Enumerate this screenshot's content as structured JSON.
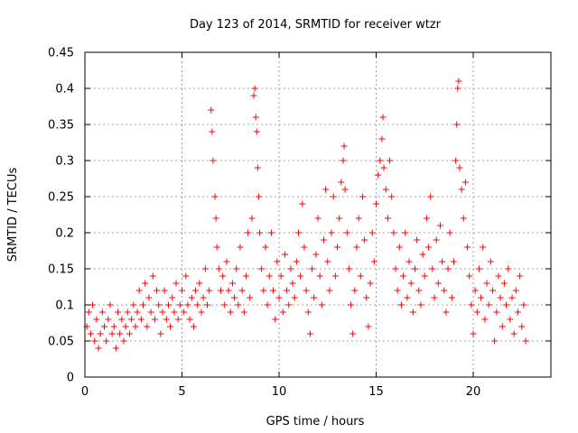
{
  "chart_data": {
    "type": "scatter",
    "title": "Day 123 of 2014, SRMTID for receiver wtzr",
    "xlabel": "GPS time / hours",
    "ylabel": "SRMTID / TECUs",
    "xlim": [
      0,
      24
    ],
    "ylim": [
      0,
      0.45
    ],
    "xticks": [
      0,
      5,
      10,
      15,
      20
    ],
    "xtick_labels": [
      "0",
      "5",
      "10",
      "15",
      "20"
    ],
    "yticks": [
      0,
      0.05,
      0.1,
      0.15,
      0.2,
      0.25,
      0.3,
      0.35,
      0.4,
      0.45
    ],
    "ytick_labels": [
      "0",
      "0.05",
      "0.1",
      "0.15",
      "0.2",
      "0.25",
      "0.3",
      "0.35",
      "0.4",
      "0.45"
    ],
    "grid": true,
    "marker": "+",
    "colors": {
      "points": "#ff0000",
      "grid": "#a0a0a0",
      "axes": "#000000"
    },
    "series": [
      {
        "name": "SRMTID",
        "points": [
          [
            0.1,
            0.07
          ],
          [
            0.2,
            0.09
          ],
          [
            0.3,
            0.06
          ],
          [
            0.4,
            0.1
          ],
          [
            0.5,
            0.05
          ],
          [
            0.6,
            0.08
          ],
          [
            0.7,
            0.04
          ],
          [
            0.8,
            0.06
          ],
          [
            0.9,
            0.09
          ],
          [
            1.0,
            0.07
          ],
          [
            1.1,
            0.05
          ],
          [
            1.2,
            0.08
          ],
          [
            1.3,
            0.1
          ],
          [
            1.4,
            0.06
          ],
          [
            1.5,
            0.07
          ],
          [
            1.6,
            0.04
          ],
          [
            1.7,
            0.09
          ],
          [
            1.8,
            0.06
          ],
          [
            1.9,
            0.08
          ],
          [
            2.0,
            0.05
          ],
          [
            2.1,
            0.07
          ],
          [
            2.2,
            0.09
          ],
          [
            2.3,
            0.06
          ],
          [
            2.4,
            0.08
          ],
          [
            2.5,
            0.1
          ],
          [
            2.6,
            0.07
          ],
          [
            2.7,
            0.09
          ],
          [
            2.8,
            0.12
          ],
          [
            2.9,
            0.08
          ],
          [
            3.0,
            0.1
          ],
          [
            3.1,
            0.13
          ],
          [
            3.2,
            0.07
          ],
          [
            3.3,
            0.11
          ],
          [
            3.4,
            0.09
          ],
          [
            3.5,
            0.14
          ],
          [
            3.6,
            0.08
          ],
          [
            3.7,
            0.12
          ],
          [
            3.8,
            0.1
          ],
          [
            3.9,
            0.06
          ],
          [
            4.0,
            0.09
          ],
          [
            4.1,
            0.12
          ],
          [
            4.2,
            0.08
          ],
          [
            4.3,
            0.1
          ],
          [
            4.4,
            0.07
          ],
          [
            4.5,
            0.11
          ],
          [
            4.6,
            0.09
          ],
          [
            4.7,
            0.13
          ],
          [
            4.8,
            0.08
          ],
          [
            4.9,
            0.1
          ],
          [
            5.0,
            0.12
          ],
          [
            5.1,
            0.09
          ],
          [
            5.2,
            0.14
          ],
          [
            5.3,
            0.1
          ],
          [
            5.4,
            0.08
          ],
          [
            5.5,
            0.11
          ],
          [
            5.6,
            0.07
          ],
          [
            5.7,
            0.12
          ],
          [
            5.8,
            0.1
          ],
          [
            5.9,
            0.13
          ],
          [
            6.0,
            0.09
          ],
          [
            6.1,
            0.11
          ],
          [
            6.2,
            0.15
          ],
          [
            6.3,
            0.1
          ],
          [
            6.4,
            0.12
          ],
          [
            6.5,
            0.37
          ],
          [
            6.55,
            0.34
          ],
          [
            6.6,
            0.3
          ],
          [
            6.7,
            0.25
          ],
          [
            6.75,
            0.22
          ],
          [
            6.8,
            0.18
          ],
          [
            6.9,
            0.15
          ],
          [
            7.0,
            0.12
          ],
          [
            7.1,
            0.14
          ],
          [
            7.2,
            0.1
          ],
          [
            7.3,
            0.16
          ],
          [
            7.4,
            0.12
          ],
          [
            7.5,
            0.09
          ],
          [
            7.6,
            0.13
          ],
          [
            7.7,
            0.11
          ],
          [
            7.8,
            0.15
          ],
          [
            7.9,
            0.1
          ],
          [
            8.0,
            0.18
          ],
          [
            8.1,
            0.12
          ],
          [
            8.2,
            0.09
          ],
          [
            8.3,
            0.14
          ],
          [
            8.4,
            0.2
          ],
          [
            8.5,
            0.11
          ],
          [
            8.6,
            0.22
          ],
          [
            8.7,
            0.39
          ],
          [
            8.75,
            0.4
          ],
          [
            8.8,
            0.36
          ],
          [
            8.85,
            0.34
          ],
          [
            8.9,
            0.29
          ],
          [
            8.95,
            0.25
          ],
          [
            9.0,
            0.2
          ],
          [
            9.1,
            0.15
          ],
          [
            9.2,
            0.12
          ],
          [
            9.3,
            0.18
          ],
          [
            9.4,
            0.1
          ],
          [
            9.5,
            0.14
          ],
          [
            9.6,
            0.2
          ],
          [
            9.7,
            0.12
          ],
          [
            9.8,
            0.08
          ],
          [
            9.9,
            0.16
          ],
          [
            10.0,
            0.11
          ],
          [
            10.1,
            0.14
          ],
          [
            10.2,
            0.09
          ],
          [
            10.3,
            0.17
          ],
          [
            10.4,
            0.12
          ],
          [
            10.5,
            0.1
          ],
          [
            10.6,
            0.15
          ],
          [
            10.7,
            0.13
          ],
          [
            10.8,
            0.11
          ],
          [
            10.9,
            0.16
          ],
          [
            11.0,
            0.2
          ],
          [
            11.1,
            0.14
          ],
          [
            11.2,
            0.24
          ],
          [
            11.3,
            0.18
          ],
          [
            11.4,
            0.12
          ],
          [
            11.5,
            0.09
          ],
          [
            11.6,
            0.06
          ],
          [
            11.7,
            0.15
          ],
          [
            11.8,
            0.11
          ],
          [
            11.9,
            0.17
          ],
          [
            12.0,
            0.22
          ],
          [
            12.1,
            0.14
          ],
          [
            12.2,
            0.1
          ],
          [
            12.3,
            0.19
          ],
          [
            12.4,
            0.26
          ],
          [
            12.5,
            0.16
          ],
          [
            12.6,
            0.12
          ],
          [
            12.7,
            0.2
          ],
          [
            12.8,
            0.25
          ],
          [
            12.9,
            0.14
          ],
          [
            13.0,
            0.18
          ],
          [
            13.1,
            0.22
          ],
          [
            13.2,
            0.27
          ],
          [
            13.3,
            0.3
          ],
          [
            13.35,
            0.32
          ],
          [
            13.4,
            0.26
          ],
          [
            13.5,
            0.2
          ],
          [
            13.6,
            0.15
          ],
          [
            13.7,
            0.1
          ],
          [
            13.8,
            0.06
          ],
          [
            13.9,
            0.12
          ],
          [
            14.0,
            0.18
          ],
          [
            14.1,
            0.22
          ],
          [
            14.2,
            0.14
          ],
          [
            14.3,
            0.25
          ],
          [
            14.4,
            0.19
          ],
          [
            14.5,
            0.11
          ],
          [
            14.6,
            0.07
          ],
          [
            14.7,
            0.13
          ],
          [
            14.8,
            0.2
          ],
          [
            14.9,
            0.16
          ],
          [
            15.0,
            0.24
          ],
          [
            15.1,
            0.28
          ],
          [
            15.2,
            0.3
          ],
          [
            15.3,
            0.33
          ],
          [
            15.35,
            0.36
          ],
          [
            15.4,
            0.29
          ],
          [
            15.5,
            0.26
          ],
          [
            15.6,
            0.22
          ],
          [
            15.7,
            0.3
          ],
          [
            15.8,
            0.25
          ],
          [
            15.9,
            0.2
          ],
          [
            16.0,
            0.15
          ],
          [
            16.1,
            0.12
          ],
          [
            16.2,
            0.18
          ],
          [
            16.3,
            0.1
          ],
          [
            16.4,
            0.14
          ],
          [
            16.5,
            0.2
          ],
          [
            16.6,
            0.11
          ],
          [
            16.7,
            0.16
          ],
          [
            16.8,
            0.13
          ],
          [
            16.9,
            0.09
          ],
          [
            17.0,
            0.15
          ],
          [
            17.1,
            0.19
          ],
          [
            17.2,
            0.12
          ],
          [
            17.3,
            0.1
          ],
          [
            17.4,
            0.17
          ],
          [
            17.5,
            0.14
          ],
          [
            17.6,
            0.22
          ],
          [
            17.7,
            0.18
          ],
          [
            17.8,
            0.25
          ],
          [
            17.9,
            0.15
          ],
          [
            18.0,
            0.11
          ],
          [
            18.1,
            0.19
          ],
          [
            18.2,
            0.13
          ],
          [
            18.3,
            0.21
          ],
          [
            18.4,
            0.16
          ],
          [
            18.5,
            0.12
          ],
          [
            18.6,
            0.09
          ],
          [
            18.7,
            0.15
          ],
          [
            18.8,
            0.2
          ],
          [
            18.9,
            0.11
          ],
          [
            19.0,
            0.16
          ],
          [
            19.1,
            0.3
          ],
          [
            19.15,
            0.35
          ],
          [
            19.2,
            0.4
          ],
          [
            19.25,
            0.41
          ],
          [
            19.3,
            0.29
          ],
          [
            19.4,
            0.26
          ],
          [
            19.5,
            0.22
          ],
          [
            19.6,
            0.27
          ],
          [
            19.7,
            0.18
          ],
          [
            19.8,
            0.14
          ],
          [
            19.9,
            0.1
          ],
          [
            20.0,
            0.06
          ],
          [
            20.1,
            0.12
          ],
          [
            20.2,
            0.09
          ],
          [
            20.3,
            0.15
          ],
          [
            20.4,
            0.11
          ],
          [
            20.5,
            0.18
          ],
          [
            20.6,
            0.08
          ],
          [
            20.7,
            0.13
          ],
          [
            20.8,
            0.1
          ],
          [
            20.9,
            0.16
          ],
          [
            21.0,
            0.12
          ],
          [
            21.1,
            0.05
          ],
          [
            21.2,
            0.09
          ],
          [
            21.3,
            0.14
          ],
          [
            21.4,
            0.11
          ],
          [
            21.5,
            0.07
          ],
          [
            21.6,
            0.13
          ],
          [
            21.7,
            0.1
          ],
          [
            21.8,
            0.15
          ],
          [
            21.9,
            0.08
          ],
          [
            22.0,
            0.11
          ],
          [
            22.1,
            0.06
          ],
          [
            22.2,
            0.12
          ],
          [
            22.3,
            0.09
          ],
          [
            22.4,
            0.14
          ],
          [
            22.5,
            0.07
          ],
          [
            22.6,
            0.1
          ],
          [
            22.7,
            0.05
          ]
        ]
      }
    ]
  }
}
